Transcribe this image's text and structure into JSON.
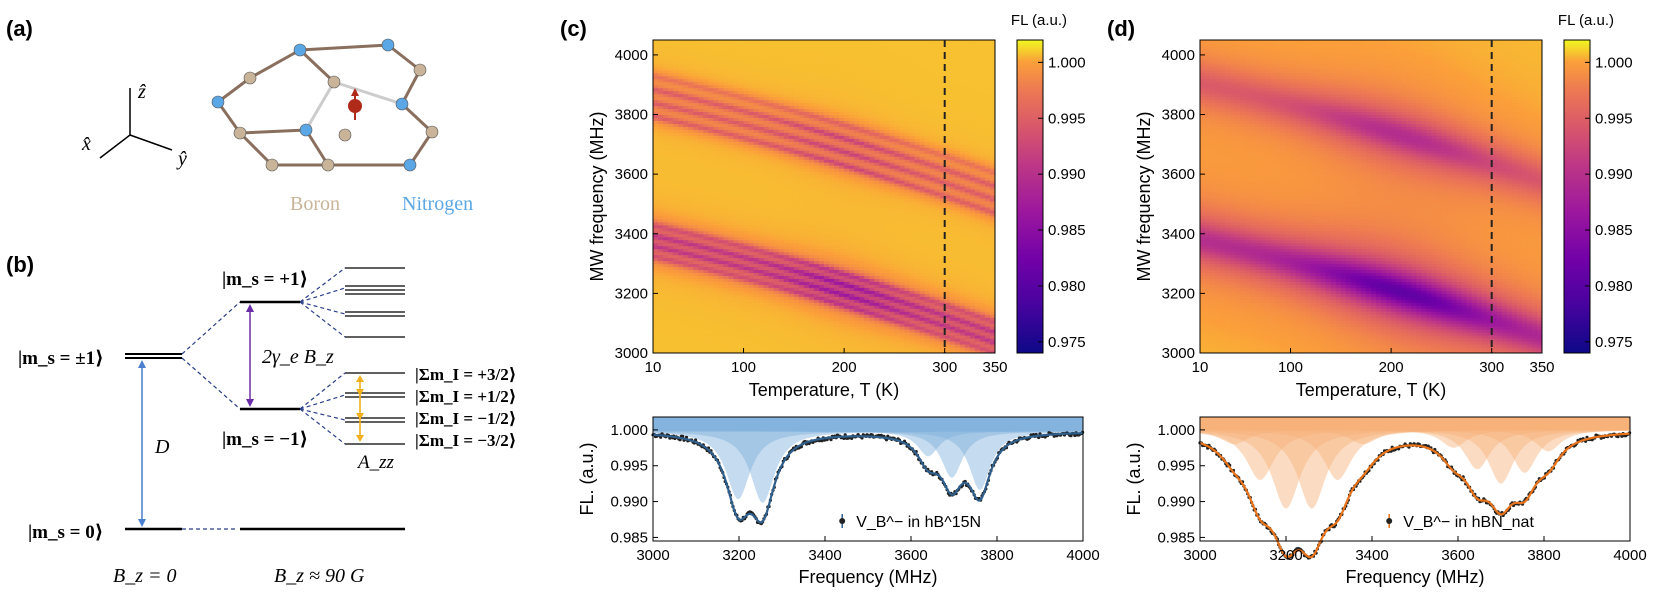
{
  "panel_labels": {
    "a": "(a)",
    "b": "(b)",
    "c": "(c)",
    "d": "(d)"
  },
  "lattice": {
    "axes": {
      "z": "ẑ",
      "x": "x̂",
      "y": "ŷ"
    },
    "boron_label": "Boron",
    "nitrogen_label": "Nitrogen",
    "boron_color": "#c9b49a",
    "nitrogen_color": "#5ba7e6"
  },
  "energy_levels": {
    "ms_pm1": "|m_s = ±1⟩",
    "ms_p1": "|m_s = +1⟩",
    "ms_m1": "|m_s = −1⟩",
    "ms_0": "|m_s = 0⟩",
    "splitting": "2γ_e B_z",
    "zfs": "D",
    "hyperfine": "A_zz",
    "mI_levels": [
      "|Σm_I = +3/2⟩",
      "|Σm_I = +1/2⟩",
      "|Σm_I = −1/2⟩",
      "|Σm_I = −3/2⟩"
    ],
    "bz_zero": "B_z = 0",
    "bz_field": "B_z ≈ 90 G"
  },
  "chart_data": [
    {
      "id": "c",
      "type": "heatmap",
      "xlabel": "Temperature, T (K)",
      "ylabel": "MW frequency (MHz)",
      "x_ticks": [
        "10",
        "100",
        "200",
        "300",
        "350"
      ],
      "x_tick_values": [
        10,
        100,
        200,
        300,
        350
      ],
      "y_ticks": [
        "3000",
        "3200",
        "3400",
        "3600",
        "3800",
        "4000"
      ],
      "y_tick_values": [
        3000,
        3200,
        3400,
        3600,
        3800,
        4000
      ],
      "xlim": [
        10,
        350
      ],
      "ylim": [
        3000,
        4050
      ],
      "marker_T": 300,
      "colorbar_label": "FL (a.u.)",
      "colorbar_ticks": [
        "1.000",
        "0.995",
        "0.990",
        "0.985",
        "0.980",
        "0.975"
      ],
      "colorbar_values": [
        1.0,
        0.995,
        0.99,
        0.985,
        0.98,
        0.975
      ],
      "clim": [
        0.974,
        1.002
      ],
      "grid": false,
      "colormap": "plasma",
      "sample": "hB15N"
    },
    {
      "id": "d",
      "type": "heatmap",
      "xlabel": "Temperature, T (K)",
      "ylabel": "MW frequency (MHz)",
      "x_ticks": [
        "10",
        "100",
        "200",
        "300",
        "350"
      ],
      "x_tick_values": [
        10,
        100,
        200,
        300,
        350
      ],
      "y_ticks": [
        "3000",
        "3200",
        "3400",
        "3600",
        "3800",
        "4000"
      ],
      "y_tick_values": [
        3000,
        3200,
        3400,
        3600,
        3800,
        4000
      ],
      "xlim": [
        10,
        350
      ],
      "ylim": [
        3000,
        4050
      ],
      "marker_T": 300,
      "colorbar_label": "FL (a.u.)",
      "colorbar_ticks": [
        "1.000",
        "0.995",
        "0.990",
        "0.985",
        "0.980",
        "0.975"
      ],
      "colorbar_values": [
        1.0,
        0.995,
        0.99,
        0.985,
        0.98,
        0.975
      ],
      "clim": [
        0.974,
        1.002
      ],
      "grid": false,
      "colormap": "plasma",
      "sample": "hBNnat"
    },
    {
      "id": "c-spectrum",
      "type": "line",
      "xlabel": "Frequency (MHz)",
      "ylabel": "FL. (a.u.)",
      "x_ticks": [
        "3000",
        "3200",
        "3400",
        "3600",
        "3800",
        "4000"
      ],
      "x_tick_values": [
        3000,
        3200,
        3400,
        3600,
        3800,
        4000
      ],
      "y_ticks": [
        "1.000",
        "0.995",
        "0.990",
        "0.985"
      ],
      "y_tick_values": [
        1.0,
        0.995,
        0.99,
        0.985
      ],
      "xlim": [
        3000,
        4000
      ],
      "ylim": [
        0.9845,
        1.0018
      ],
      "legend": "V_B^− in hB^15N",
      "legend_placement": "bottom-center",
      "color": "#2f5f8c",
      "fill_color": "#7fb0dc",
      "baseline": 0.9998,
      "dips": [
        {
          "center": 3198,
          "depth": 0.0095,
          "width": 34
        },
        {
          "center": 3255,
          "depth": 0.01,
          "width": 34
        },
        {
          "center": 3640,
          "depth": 0.0035,
          "width": 30
        },
        {
          "center": 3695,
          "depth": 0.0065,
          "width": 30
        },
        {
          "center": 3760,
          "depth": 0.0082,
          "width": 30
        }
      ]
    },
    {
      "id": "d-spectrum",
      "type": "line",
      "xlabel": "Frequency (MHz)",
      "ylabel": "FL. (a.u.)",
      "x_ticks": [
        "3000",
        "3200",
        "3400",
        "3600",
        "3800",
        "4000"
      ],
      "x_tick_values": [
        3000,
        3200,
        3400,
        3600,
        3800,
        4000
      ],
      "y_ticks": [
        "1.000",
        "0.995",
        "0.990",
        "0.985"
      ],
      "y_tick_values": [
        1.0,
        0.995,
        0.99,
        0.985
      ],
      "xlim": [
        3000,
        4000
      ],
      "ylim": [
        0.9845,
        1.0018
      ],
      "legend": "V_B^− in hBN_nat",
      "legend_placement": "bottom-center",
      "color": "#e8731a",
      "fill_color": "#f6b27a",
      "baseline": 1.0,
      "dips": [
        {
          "center": 3080,
          "depth": 0.002,
          "width": 40
        },
        {
          "center": 3140,
          "depth": 0.007,
          "width": 40
        },
        {
          "center": 3200,
          "depth": 0.011,
          "width": 40
        },
        {
          "center": 3260,
          "depth": 0.011,
          "width": 40
        },
        {
          "center": 3320,
          "depth": 0.007,
          "width": 40
        },
        {
          "center": 3380,
          "depth": 0.002,
          "width": 40
        },
        {
          "center": 3590,
          "depth": 0.0025,
          "width": 36
        },
        {
          "center": 3645,
          "depth": 0.0055,
          "width": 36
        },
        {
          "center": 3700,
          "depth": 0.0075,
          "width": 36
        },
        {
          "center": 3755,
          "depth": 0.006,
          "width": 36
        },
        {
          "center": 3810,
          "depth": 0.003,
          "width": 36
        }
      ]
    }
  ]
}
